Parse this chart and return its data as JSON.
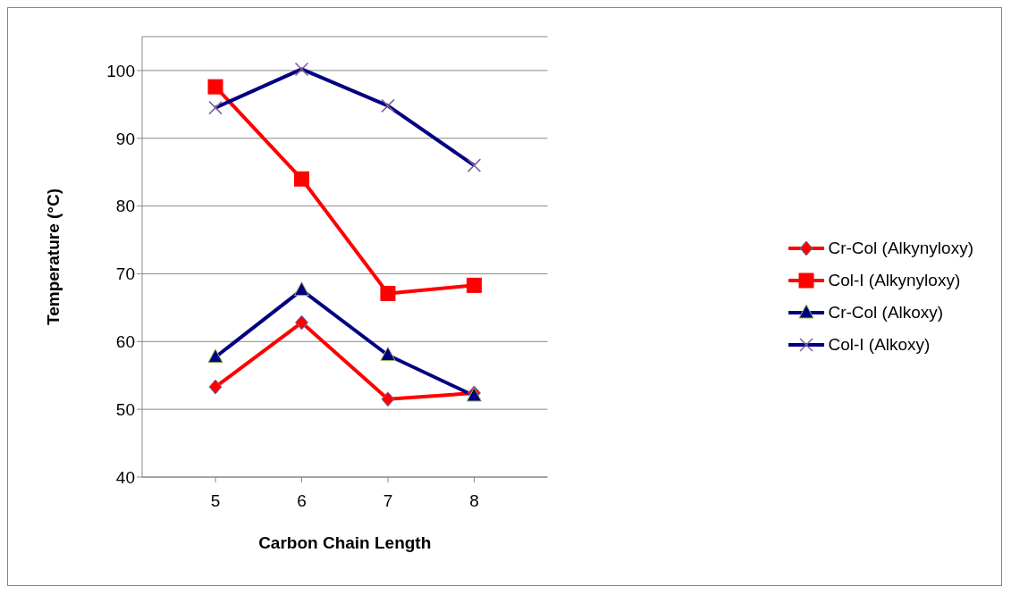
{
  "chart_data": {
    "type": "line",
    "xlabel": "Carbon Chain Length",
    "ylabel": "Temperature  (°C)",
    "categories": [
      "5",
      "6",
      "7",
      "8"
    ],
    "series": [
      {
        "name": "Cr-Col (Alkynyloxy)",
        "color": "#ff0000",
        "marker": "diamond",
        "values": [
          53.3,
          62.8,
          51.5,
          52.4
        ]
      },
      {
        "name": "Col-I (Alkynyloxy)",
        "color": "#ff0000",
        "marker": "square",
        "values": [
          97.6,
          84,
          67.1,
          68.3
        ]
      },
      {
        "name": "Cr-Col (Alkoxy)",
        "color": "#000080",
        "marker": "triangle",
        "values": [
          57.7,
          67.6,
          58,
          52
        ]
      },
      {
        "name": "Col-I (Alkoxy)",
        "color": "#000080",
        "marker": "cross",
        "values": [
          94.5,
          100.2,
          94.8,
          86
        ]
      }
    ],
    "ylim": [
      40,
      105
    ],
    "yticks": [
      40,
      50,
      60,
      70,
      80,
      90,
      100
    ],
    "grid": "y",
    "legend": "right",
    "line_style": "solid"
  }
}
